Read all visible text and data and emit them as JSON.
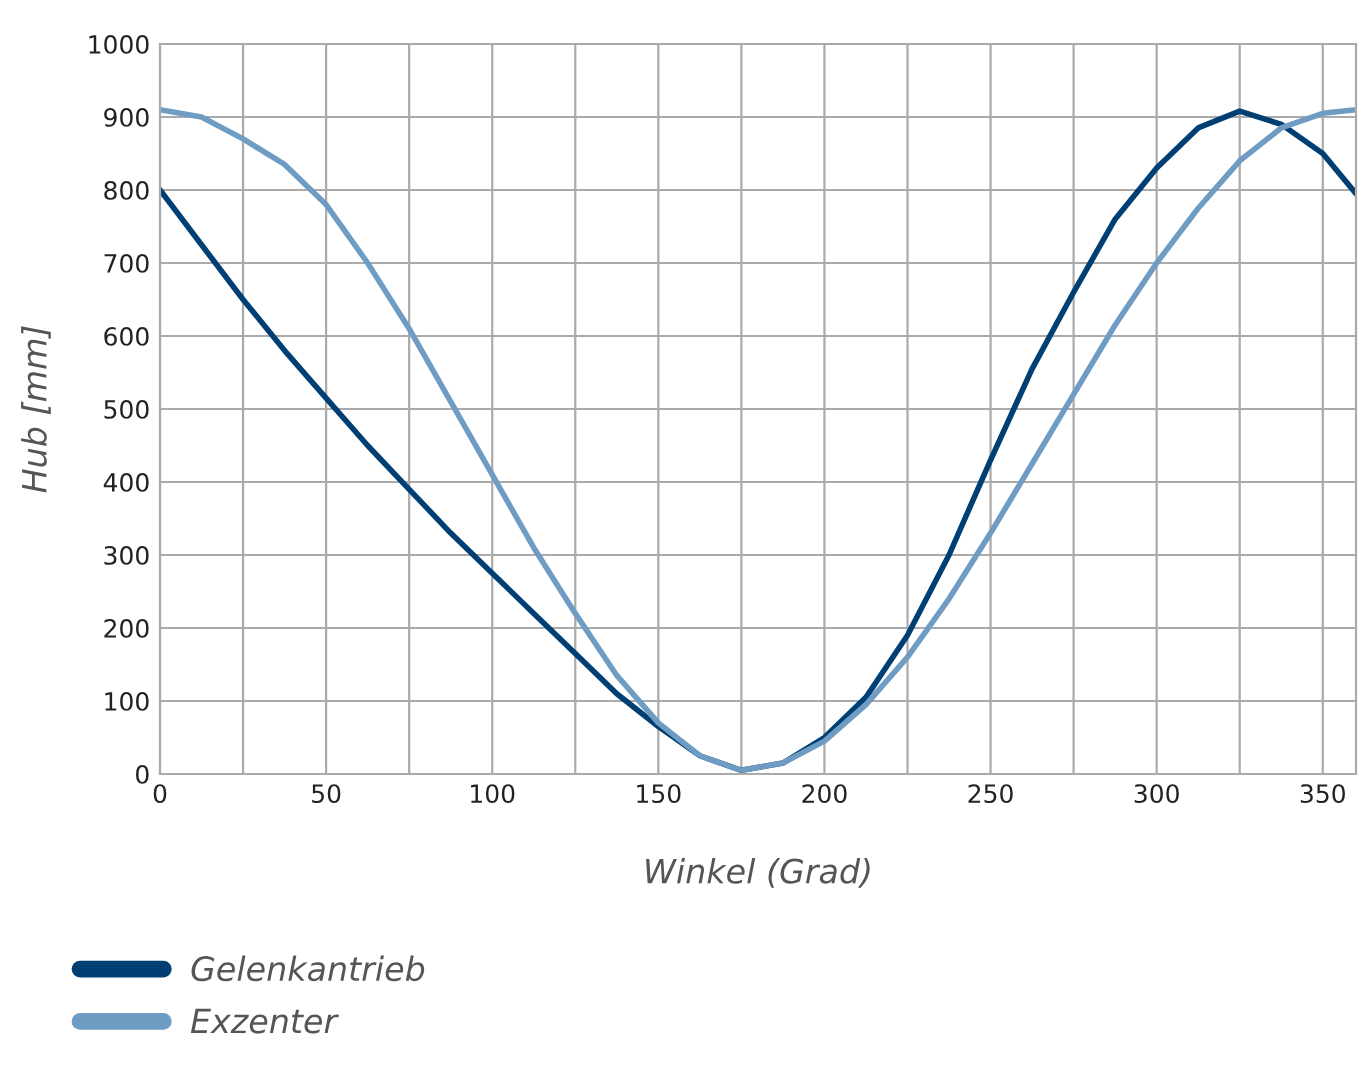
{
  "chart_data": {
    "type": "line",
    "xlabel": "Winkel (Grad)",
    "ylabel": "Hub [mm]",
    "x": [
      0,
      12.5,
      25,
      37.5,
      50,
      62.5,
      75,
      87.5,
      100,
      112.5,
      125,
      137.5,
      150,
      162.5,
      175,
      187.5,
      200,
      212.5,
      225,
      237.5,
      250,
      262.5,
      275,
      287.5,
      300,
      312.5,
      325,
      337.5,
      350,
      360
    ],
    "series": [
      {
        "name": "Gelenkantrieb",
        "color": "#003f74",
        "values": [
          800,
          725,
          650,
          580,
          515,
          450,
          390,
          330,
          275,
          220,
          165,
          110,
          65,
          25,
          5,
          15,
          50,
          105,
          190,
          300,
          430,
          555,
          660,
          760,
          830,
          885,
          908,
          890,
          850,
          795
        ]
      },
      {
        "name": "Exzenter",
        "color": "#6f9cc3",
        "values": [
          910,
          900,
          870,
          835,
          780,
          700,
          610,
          510,
          410,
          310,
          220,
          135,
          70,
          25,
          5,
          15,
          45,
          95,
          160,
          240,
          330,
          425,
          520,
          615,
          700,
          775,
          840,
          885,
          905,
          910
        ]
      }
    ],
    "xlim": [
      0,
      360
    ],
    "xticks": [
      0,
      {
        "value": 25,
        "label": null
      },
      50,
      {
        "value": 75,
        "label": null
      },
      100,
      {
        "value": 125,
        "label": null
      },
      150,
      {
        "value": 175,
        "label": null
      },
      200,
      {
        "value": 225,
        "label": null
      },
      250,
      {
        "value": 275,
        "label": null
      },
      300,
      {
        "value": 325,
        "label": null
      },
      350
    ],
    "ylim": [
      0,
      1000
    ],
    "yticks": [
      0,
      100,
      200,
      300,
      400,
      500,
      600,
      700,
      800,
      900,
      1000
    ],
    "grid": true,
    "legend": "bottom left",
    "marker": "none",
    "line_style": "solid"
  }
}
